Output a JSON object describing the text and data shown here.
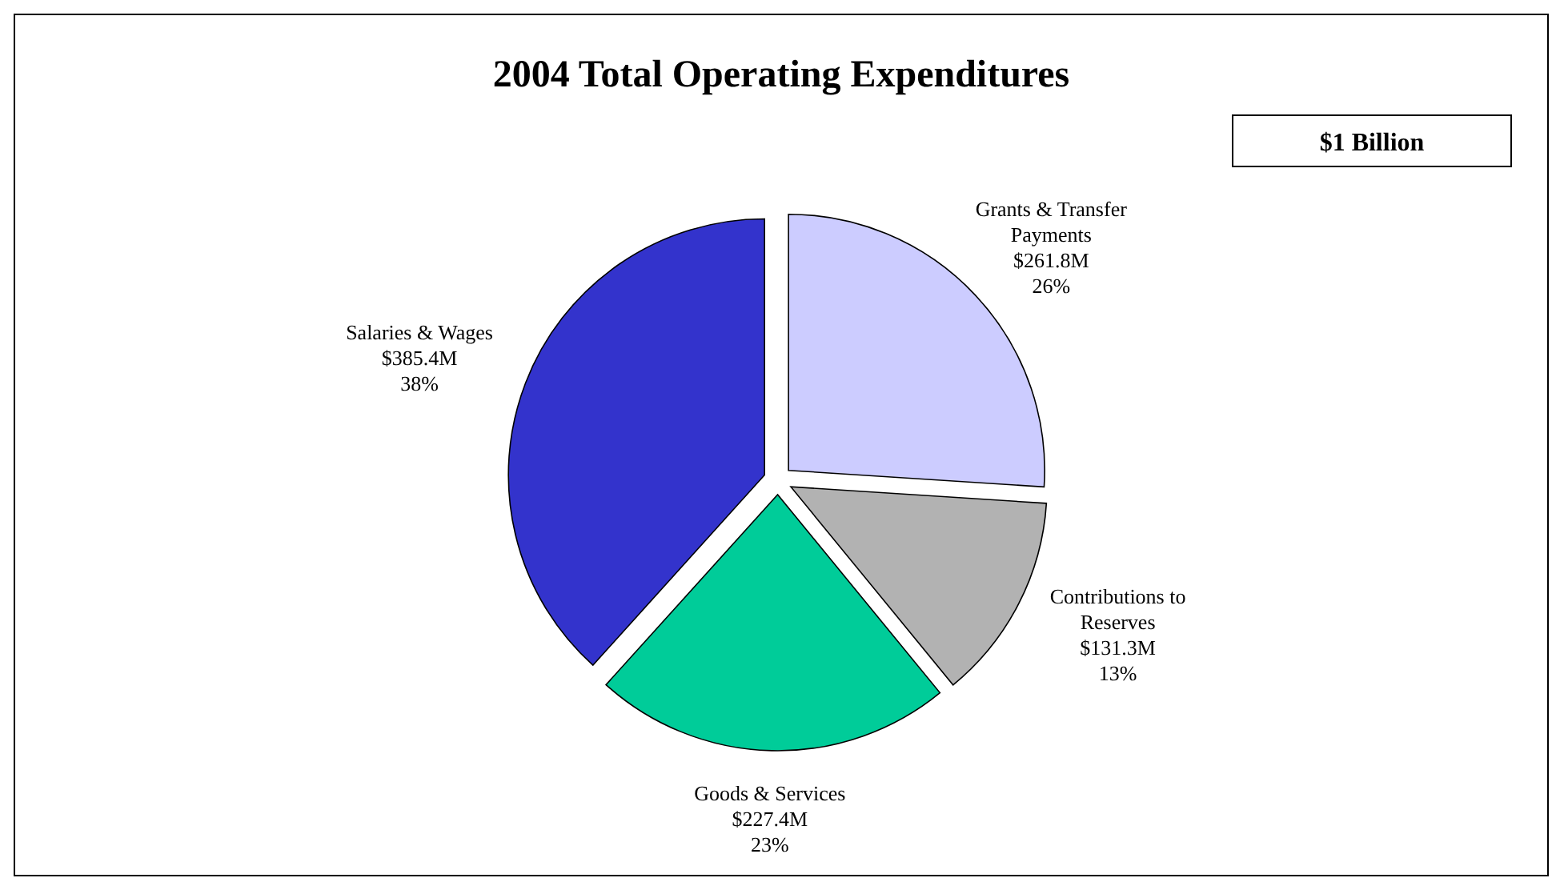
{
  "chart_data": {
    "type": "pie",
    "title": "2004 Total Operating Expenditures",
    "annotations": [
      "$1 Billion",
      {
        "text": "26%",
        "x": "Grants & Transfer Payments"
      },
      {
        "text": "13%",
        "x": "Contributions to Reserves"
      },
      {
        "text": "23%",
        "x": "Goods & Services"
      },
      {
        "text": "38%",
        "x": "Salaries & Wages"
      }
    ],
    "categories": [
      "Grants & Transfer Payments",
      "Contributions to Reserves",
      "Goods & Services",
      "Salaries & Wages"
    ],
    "values": [
      261.8,
      131.3,
      227.4,
      385.4
    ],
    "colors": [
      "#ccccff",
      "#b2b2b2",
      "#00cc99",
      "#3333cc"
    ],
    "value_labels": [
      "$261.8M",
      "$131.3M",
      "$227.4M",
      "$385.4M"
    ]
  }
}
